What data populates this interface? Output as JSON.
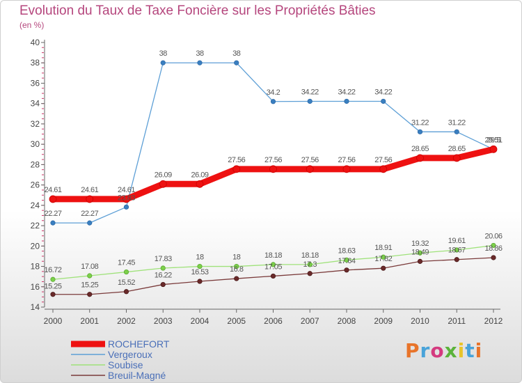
{
  "title": "Evolution du Taux de Taxe Foncière sur les Propriétés Bâties",
  "subtitle": "(en %)",
  "logo": {
    "text": "Proxiti",
    "colors": [
      "#e8742a",
      "#49a3d9",
      "#d43a7f",
      "#5bb33b",
      "#e8c42a",
      "#49a3d9",
      "#e8742a"
    ]
  },
  "colors": {
    "title": "#b5467d",
    "axis": "#666666",
    "tick_minor": "#cc3366",
    "label": "#444444"
  },
  "chart_data": {
    "type": "line",
    "title": "Evolution du Taux de Taxe Foncière sur les Propriétés Bâties",
    "ylabel": "(en %)",
    "xlabel": "",
    "ylim": [
      14,
      40
    ],
    "yticks": [
      14,
      16,
      18,
      20,
      22,
      24,
      26,
      28,
      30,
      32,
      34,
      36,
      38,
      40
    ],
    "grid": false,
    "legend_position": "bottom-left",
    "x": [
      "2000",
      "2001",
      "2002",
      "2003",
      "2004",
      "2005",
      "2006",
      "2007",
      "2008",
      "2009",
      "2010",
      "2011",
      "2012"
    ],
    "series": [
      {
        "name": "ROCHEFORT",
        "color": "#ee1111",
        "values": [
          24.61,
          24.61,
          24.61,
          26.09,
          26.09,
          27.56,
          27.56,
          27.56,
          27.56,
          27.56,
          28.65,
          28.65,
          29.51
        ],
        "labels": [
          "24.61",
          "24.61",
          "24.61",
          "26.09",
          "26.09",
          "27.56",
          "27.56",
          "27.56",
          "27.56",
          "27.56",
          "28.65",
          "28.65",
          "29.51"
        ]
      },
      {
        "name": "Vergeroux",
        "color": "#5d9fd6",
        "values": [
          22.27,
          22.27,
          23.83,
          38,
          38,
          38,
          34.2,
          34.22,
          34.22,
          34.22,
          31.22,
          31.22,
          29.5
        ],
        "labels": [
          "22.27",
          "22.27",
          "23.83",
          "38",
          "38",
          "38",
          "34.2",
          "34.22",
          "34.22",
          "34.22",
          "31.22",
          "31.22",
          "29.5"
        ]
      },
      {
        "name": "Soubise",
        "color": "#9fe27a",
        "values": [
          16.72,
          17.08,
          17.45,
          17.83,
          18,
          18,
          18.18,
          18.18,
          18.63,
          18.91,
          19.32,
          19.61,
          20.06
        ],
        "labels": [
          "16.72",
          "17.08",
          "17.45",
          "17.83",
          "18",
          "18",
          "18.18",
          "18.18",
          "18.63",
          "18.91",
          "19.32",
          "19.61",
          "20.06"
        ]
      },
      {
        "name": "Breuil-Magné",
        "color": "#7a3a3a",
        "values": [
          15.25,
          15.25,
          15.52,
          16.22,
          16.53,
          16.8,
          17.05,
          17.3,
          17.64,
          17.82,
          18.49,
          18.67,
          18.86
        ],
        "labels": [
          "15.25",
          "15.25",
          "15.52",
          "16.22",
          "16.53",
          "16.8",
          "17.05",
          "17.3",
          "17.64",
          "17.82",
          "18.49",
          "18.67",
          "18.86"
        ]
      }
    ]
  }
}
